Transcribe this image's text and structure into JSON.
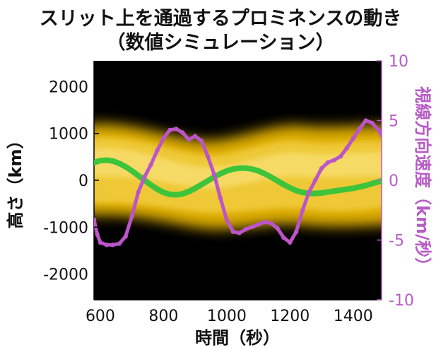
{
  "title": "スリット上を通過するプロミネンスの動き",
  "subtitle": "（数値シミュレーション）",
  "chart_data": {
    "type": "line",
    "xlabel": "時間（秒）",
    "ylabel_left": "高さ（km）",
    "ylabel_right": "視線方向速度（km/秒）",
    "xlim": [
      580,
      1490
    ],
    "ylim_left": [
      -2550,
      2550
    ],
    "ylim_right": [
      -10,
      10
    ],
    "x_ticks": [
      "600",
      "800",
      "1000",
      "1200",
      "1400"
    ],
    "y_ticks_left": [
      "2000",
      "1000",
      "0",
      "-1000",
      "-2000"
    ],
    "y_ticks_right": [
      "10",
      "5",
      "0",
      "-5",
      "-10"
    ],
    "background": "#000000",
    "series": [
      {
        "axis": "left",
        "color": "#3ec43a",
        "x": [
          580,
          600,
          620,
          640,
          660,
          680,
          700,
          720,
          740,
          760,
          780,
          800,
          820,
          840,
          860,
          880,
          900,
          920,
          940,
          960,
          980,
          1000,
          1020,
          1040,
          1060,
          1080,
          1100,
          1120,
          1140,
          1160,
          1180,
          1200,
          1220,
          1240,
          1260,
          1280,
          1300,
          1320,
          1340,
          1360,
          1380,
          1400,
          1420,
          1440,
          1460,
          1480,
          1490
        ],
        "values": [
          380,
          420,
          430,
          410,
          360,
          290,
          200,
          100,
          0,
          -100,
          -190,
          -260,
          -300,
          -310,
          -290,
          -240,
          -170,
          -90,
          -10,
          70,
          140,
          200,
          240,
          260,
          260,
          240,
          200,
          140,
          70,
          -10,
          -90,
          -160,
          -220,
          -260,
          -280,
          -280,
          -270,
          -250,
          -230,
          -210,
          -190,
          -170,
          -140,
          -110,
          -70,
          -30,
          -10
        ]
      },
      {
        "axis": "right",
        "color": "#bb55c8",
        "x": [
          580,
          590,
          600,
          620,
          640,
          660,
          680,
          700,
          720,
          740,
          760,
          780,
          800,
          820,
          840,
          860,
          880,
          900,
          920,
          940,
          960,
          980,
          1000,
          1020,
          1040,
          1060,
          1080,
          1100,
          1120,
          1140,
          1160,
          1180,
          1200,
          1220,
          1240,
          1260,
          1280,
          1300,
          1320,
          1340,
          1360,
          1380,
          1400,
          1420,
          1440,
          1460,
          1480,
          1490
        ],
        "values": [
          -3.3,
          -4.5,
          -5.2,
          -5.4,
          -5.4,
          -5.3,
          -4.7,
          -3.0,
          -1.0,
          0.3,
          1.3,
          2.5,
          3.5,
          4.2,
          4.3,
          4.0,
          3.4,
          3.7,
          3.3,
          2.0,
          0.5,
          -1.5,
          -3.3,
          -4.3,
          -4.4,
          -4.1,
          -3.9,
          -3.7,
          -3.5,
          -3.6,
          -4.0,
          -4.8,
          -5.2,
          -4.3,
          -2.5,
          -1.0,
          0.0,
          1.0,
          1.5,
          1.7,
          2.0,
          2.7,
          3.5,
          4.3,
          5.0,
          4.8,
          4.2,
          3.8
        ]
      }
    ]
  }
}
